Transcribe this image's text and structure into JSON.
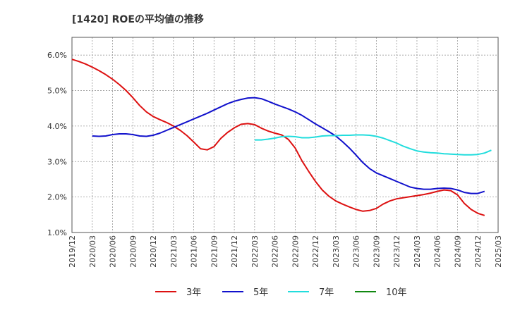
{
  "chart_data": {
    "type": "line",
    "title": "[1420]  ROEの平均値の推移",
    "xlabel": "",
    "ylabel": "",
    "ylim": [
      1.0,
      6.5
    ],
    "y_ticks": [
      1.0,
      2.0,
      3.0,
      4.0,
      5.0,
      6.0
    ],
    "y_tick_labels": [
      "1.0%",
      "2.0%",
      "3.0%",
      "4.0%",
      "5.0%",
      "6.0%"
    ],
    "x_ticks": [
      "2019/12",
      "2020/03",
      "2020/06",
      "2020/09",
      "2020/12",
      "2021/03",
      "2021/06",
      "2021/09",
      "2021/12",
      "2022/03",
      "2022/06",
      "2022/09",
      "2022/12",
      "2023/03",
      "2023/06",
      "2023/09",
      "2023/12",
      "2024/03",
      "2024/06",
      "2024/09",
      "2024/12",
      "2025/03"
    ],
    "grid": true,
    "legend_position": "bottom",
    "series": [
      {
        "name": "3年",
        "color": "#dd1111",
        "points": [
          [
            "2019/12",
            5.88
          ],
          [
            "2020/01",
            5.82
          ],
          [
            "2020/02",
            5.75
          ],
          [
            "2020/03",
            5.66
          ],
          [
            "2020/04",
            5.56
          ],
          [
            "2020/05",
            5.45
          ],
          [
            "2020/06",
            5.32
          ],
          [
            "2020/07",
            5.17
          ],
          [
            "2020/08",
            5.0
          ],
          [
            "2020/09",
            4.8
          ],
          [
            "2020/10",
            4.58
          ],
          [
            "2020/11",
            4.4
          ],
          [
            "2020/12",
            4.27
          ],
          [
            "2021/01",
            4.18
          ],
          [
            "2021/02",
            4.1
          ],
          [
            "2021/03",
            4.0
          ],
          [
            "2021/04",
            3.88
          ],
          [
            "2021/05",
            3.73
          ],
          [
            "2021/06",
            3.55
          ],
          [
            "2021/07",
            3.36
          ],
          [
            "2021/08",
            3.33
          ],
          [
            "2021/09",
            3.42
          ],
          [
            "2021/10",
            3.65
          ],
          [
            "2021/11",
            3.82
          ],
          [
            "2021/12",
            3.95
          ],
          [
            "2022/01",
            4.05
          ],
          [
            "2022/02",
            4.07
          ],
          [
            "2022/03",
            4.04
          ],
          [
            "2022/04",
            3.94
          ],
          [
            "2022/05",
            3.86
          ],
          [
            "2022/06",
            3.8
          ],
          [
            "2022/07",
            3.75
          ],
          [
            "2022/08",
            3.62
          ],
          [
            "2022/09",
            3.38
          ],
          [
            "2022/10",
            3.02
          ],
          [
            "2022/11",
            2.72
          ],
          [
            "2022/12",
            2.44
          ],
          [
            "2023/01",
            2.2
          ],
          [
            "2023/02",
            2.02
          ],
          [
            "2023/03",
            1.89
          ],
          [
            "2023/04",
            1.8
          ],
          [
            "2023/05",
            1.72
          ],
          [
            "2023/06",
            1.65
          ],
          [
            "2023/07",
            1.6
          ],
          [
            "2023/08",
            1.62
          ],
          [
            "2023/09",
            1.68
          ],
          [
            "2023/10",
            1.8
          ],
          [
            "2023/11",
            1.89
          ],
          [
            "2023/12",
            1.95
          ],
          [
            "2024/01",
            1.98
          ],
          [
            "2024/02",
            2.01
          ],
          [
            "2024/03",
            2.04
          ],
          [
            "2024/04",
            2.07
          ],
          [
            "2024/05",
            2.11
          ],
          [
            "2024/06",
            2.16
          ],
          [
            "2024/07",
            2.2
          ],
          [
            "2024/08",
            2.18
          ],
          [
            "2024/09",
            2.06
          ],
          [
            "2024/10",
            1.82
          ],
          [
            "2024/11",
            1.65
          ],
          [
            "2024/12",
            1.54
          ],
          [
            "2025/01",
            1.48
          ]
        ]
      },
      {
        "name": "5年",
        "color": "#1111cc",
        "points": [
          [
            "2020/03",
            3.72
          ],
          [
            "2020/04",
            3.71
          ],
          [
            "2020/05",
            3.72
          ],
          [
            "2020/06",
            3.76
          ],
          [
            "2020/07",
            3.78
          ],
          [
            "2020/08",
            3.78
          ],
          [
            "2020/09",
            3.76
          ],
          [
            "2020/10",
            3.72
          ],
          [
            "2020/11",
            3.71
          ],
          [
            "2020/12",
            3.74
          ],
          [
            "2021/01",
            3.8
          ],
          [
            "2021/02",
            3.88
          ],
          [
            "2021/03",
            3.96
          ],
          [
            "2021/04",
            4.04
          ],
          [
            "2021/05",
            4.12
          ],
          [
            "2021/06",
            4.2
          ],
          [
            "2021/07",
            4.28
          ],
          [
            "2021/08",
            4.36
          ],
          [
            "2021/09",
            4.45
          ],
          [
            "2021/10",
            4.54
          ],
          [
            "2021/11",
            4.63
          ],
          [
            "2021/12",
            4.7
          ],
          [
            "2022/01",
            4.75
          ],
          [
            "2022/02",
            4.79
          ],
          [
            "2022/03",
            4.8
          ],
          [
            "2022/04",
            4.77
          ],
          [
            "2022/05",
            4.7
          ],
          [
            "2022/06",
            4.62
          ],
          [
            "2022/07",
            4.55
          ],
          [
            "2022/08",
            4.48
          ],
          [
            "2022/09",
            4.4
          ],
          [
            "2022/10",
            4.3
          ],
          [
            "2022/11",
            4.18
          ],
          [
            "2022/12",
            4.06
          ],
          [
            "2023/01",
            3.95
          ],
          [
            "2023/02",
            3.84
          ],
          [
            "2023/03",
            3.72
          ],
          [
            "2023/04",
            3.56
          ],
          [
            "2023/05",
            3.38
          ],
          [
            "2023/06",
            3.18
          ],
          [
            "2023/07",
            2.97
          ],
          [
            "2023/08",
            2.8
          ],
          [
            "2023/09",
            2.68
          ],
          [
            "2023/10",
            2.6
          ],
          [
            "2023/11",
            2.52
          ],
          [
            "2023/12",
            2.44
          ],
          [
            "2024/01",
            2.36
          ],
          [
            "2024/02",
            2.28
          ],
          [
            "2024/03",
            2.24
          ],
          [
            "2024/04",
            2.22
          ],
          [
            "2024/05",
            2.22
          ],
          [
            "2024/06",
            2.24
          ],
          [
            "2024/07",
            2.25
          ],
          [
            "2024/08",
            2.24
          ],
          [
            "2024/09",
            2.2
          ],
          [
            "2024/10",
            2.13
          ],
          [
            "2024/11",
            2.1
          ],
          [
            "2024/12",
            2.1
          ],
          [
            "2025/01",
            2.16
          ]
        ]
      },
      {
        "name": "7年",
        "color": "#22dddd",
        "points": [
          [
            "2022/03",
            3.61
          ],
          [
            "2022/04",
            3.61
          ],
          [
            "2022/05",
            3.63
          ],
          [
            "2022/06",
            3.66
          ],
          [
            "2022/07",
            3.7
          ],
          [
            "2022/08",
            3.71
          ],
          [
            "2022/09",
            3.7
          ],
          [
            "2022/10",
            3.67
          ],
          [
            "2022/11",
            3.67
          ],
          [
            "2022/12",
            3.69
          ],
          [
            "2023/01",
            3.72
          ],
          [
            "2023/02",
            3.73
          ],
          [
            "2023/03",
            3.73
          ],
          [
            "2023/04",
            3.74
          ],
          [
            "2023/05",
            3.74
          ],
          [
            "2023/06",
            3.75
          ],
          [
            "2023/07",
            3.75
          ],
          [
            "2023/08",
            3.74
          ],
          [
            "2023/09",
            3.71
          ],
          [
            "2023/10",
            3.66
          ],
          [
            "2023/11",
            3.59
          ],
          [
            "2023/12",
            3.52
          ],
          [
            "2024/01",
            3.43
          ],
          [
            "2024/02",
            3.36
          ],
          [
            "2024/03",
            3.3
          ],
          [
            "2024/04",
            3.27
          ],
          [
            "2024/05",
            3.25
          ],
          [
            "2024/06",
            3.24
          ],
          [
            "2024/07",
            3.22
          ],
          [
            "2024/08",
            3.21
          ],
          [
            "2024/09",
            3.2
          ],
          [
            "2024/10",
            3.19
          ],
          [
            "2024/11",
            3.19
          ],
          [
            "2024/12",
            3.2
          ],
          [
            "2025/01",
            3.24
          ],
          [
            "2025/02",
            3.32
          ]
        ]
      },
      {
        "name": "10年",
        "color": "#118811",
        "points": []
      }
    ]
  }
}
